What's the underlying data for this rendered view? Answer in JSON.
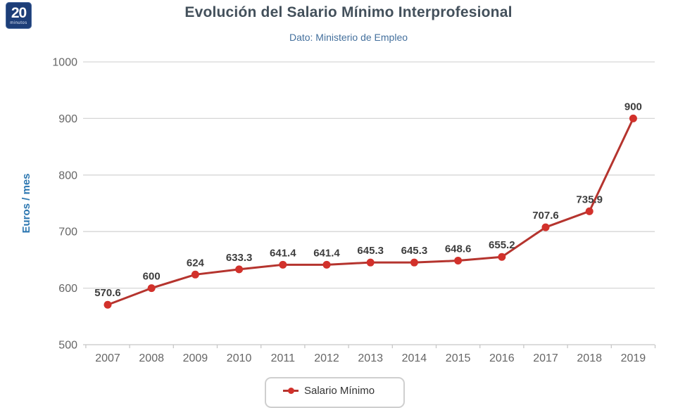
{
  "logo": {
    "number": "20",
    "word": "minutos"
  },
  "chart_data": {
    "type": "line",
    "title": "Evolución del Salario Mínimo Interprofesional",
    "subtitle": "Dato: Ministerio de Empleo",
    "ylabel": "Euros / mes",
    "xlabel": "",
    "categories": [
      "2007",
      "2008",
      "2009",
      "2010",
      "2011",
      "2012",
      "2013",
      "2014",
      "2015",
      "2016",
      "2017",
      "2018",
      "2019"
    ],
    "series": [
      {
        "name": "Salario Mínimo",
        "values": [
          570.6,
          600,
          624,
          633.3,
          641.4,
          641.4,
          645.3,
          645.3,
          648.6,
          655.2,
          707.6,
          735.9,
          900
        ]
      }
    ],
    "data_labels": [
      "570.6",
      "600",
      "624",
      "633.3",
      "641.4",
      "641.4",
      "645.3",
      "645.3",
      "648.6",
      "655.2",
      "707.6",
      "735.9",
      "900"
    ],
    "ylim": [
      500,
      1000
    ],
    "yticks": [
      500,
      600,
      700,
      800,
      900,
      1000
    ],
    "grid": "horizontal",
    "legend_position": "bottom",
    "colors": {
      "line": "#b5342e",
      "marker": "#d2312b",
      "grid": "#d6d6d6",
      "axis_line": "#c8c8c8",
      "axis_text": "#666666",
      "data_label": "#3d3d3d",
      "title": "#43505b",
      "subtitle": "#44709d",
      "ylabel_color": "#2b76b0",
      "legend_border": "#cfcfcf",
      "logo_bg": "#1d3e78"
    }
  }
}
